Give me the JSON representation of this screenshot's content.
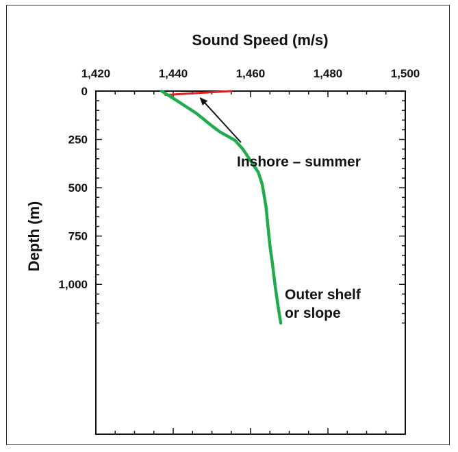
{
  "chart_data": {
    "type": "line",
    "title": "",
    "xlabel": "Sound Speed (m/s)",
    "ylabel": "Depth (m)",
    "x_axis_position": "top",
    "y_axis_inverted": true,
    "xlim": [
      1420,
      1500
    ],
    "ylim": [
      0,
      1200
    ],
    "x_ticks": [
      1420,
      1440,
      1460,
      1480,
      1500
    ],
    "x_tick_labels": [
      "1,420",
      "1,440",
      "1,460",
      "1,480",
      "1,500"
    ],
    "y_ticks": [
      0,
      250,
      500,
      750,
      1000
    ],
    "y_tick_labels": [
      "0",
      "250",
      "500",
      "750",
      "1,000"
    ],
    "grid": false,
    "series": [
      {
        "color": "#e02020",
        "points": [
          [
            1455,
            0
          ],
          [
            1438,
            20
          ]
        ]
      },
      {
        "color": "#1fad4a",
        "points": [
          [
            1437,
            0
          ],
          [
            1441,
            50
          ],
          [
            1446,
            115
          ],
          [
            1450,
            180
          ],
          [
            1452,
            210
          ],
          [
            1456,
            255
          ],
          [
            1458,
            300
          ],
          [
            1460,
            360
          ],
          [
            1462,
            420
          ],
          [
            1463,
            480
          ],
          [
            1463.5,
            540
          ],
          [
            1464,
            600
          ],
          [
            1464.5,
            700
          ],
          [
            1465,
            800
          ],
          [
            1465.7,
            900
          ],
          [
            1466.3,
            1000
          ],
          [
            1467,
            1100
          ],
          [
            1467.8,
            1200
          ]
        ]
      }
    ],
    "annotations": [
      {
        "text": "Inshore – summer",
        "x": 1455,
        "y": 240,
        "arrow_to": [
          1446,
          40
        ]
      },
      {
        "text": "Outer shelf",
        "x": 1466,
        "y": 685
      },
      {
        "text": " or slope",
        "x": 1466,
        "y": 745
      }
    ]
  }
}
